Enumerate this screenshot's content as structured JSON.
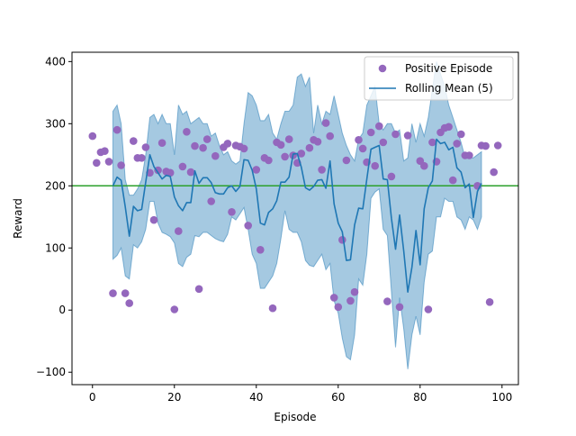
{
  "chart_data": {
    "type": "scatter",
    "title": "",
    "xlabel": "Episode",
    "ylabel": "Reward",
    "xlim": [
      -5,
      104
    ],
    "ylim": [
      -120,
      415
    ],
    "x_ticks": [
      0,
      20,
      40,
      60,
      80,
      100
    ],
    "y_ticks": [
      -100,
      0,
      100,
      200,
      300,
      400
    ],
    "grid": false,
    "legend_position": "top-right",
    "threshold": {
      "value": 200,
      "color": "#2ca02c"
    },
    "colors": {
      "points": "#9467bd",
      "rolling_mean": "#1f77b4",
      "band": "#1f77b4"
    },
    "series": [
      {
        "name": "Positive Episode",
        "kind": "scatter",
        "points": [
          [
            0,
            280
          ],
          [
            1,
            237
          ],
          [
            2,
            254
          ],
          [
            3,
            256
          ],
          [
            4,
            239
          ],
          [
            5,
            27
          ],
          [
            6,
            290
          ],
          [
            7,
            233
          ],
          [
            8,
            27
          ],
          [
            9,
            11
          ],
          [
            10,
            272
          ],
          [
            11,
            245
          ],
          [
            12,
            245
          ],
          [
            13,
            262
          ],
          [
            14,
            221
          ],
          [
            15,
            145
          ],
          [
            16,
            225
          ],
          [
            17,
            269
          ],
          [
            18,
            223
          ],
          [
            19,
            221
          ],
          [
            20,
            1
          ],
          [
            21,
            127
          ],
          [
            22,
            231
          ],
          [
            23,
            287
          ],
          [
            24,
            222
          ],
          [
            25,
            264
          ],
          [
            26,
            34
          ],
          [
            27,
            261
          ],
          [
            28,
            275
          ],
          [
            29,
            175
          ],
          [
            30,
            248
          ],
          [
            32,
            262
          ],
          [
            33,
            268
          ],
          [
            34,
            158
          ],
          [
            35,
            265
          ],
          [
            36,
            263
          ],
          [
            37,
            260
          ],
          [
            38,
            136
          ],
          [
            40,
            226
          ],
          [
            41,
            97
          ],
          [
            42,
            245
          ],
          [
            43,
            241
          ],
          [
            44,
            3
          ],
          [
            45,
            270
          ],
          [
            46,
            266
          ],
          [
            47,
            247
          ],
          [
            48,
            275
          ],
          [
            49,
            249
          ],
          [
            50,
            237
          ],
          [
            51,
            252
          ],
          [
            53,
            261
          ],
          [
            54,
            274
          ],
          [
            55,
            271
          ],
          [
            56,
            226
          ],
          [
            57,
            301
          ],
          [
            58,
            280
          ],
          [
            59,
            20
          ],
          [
            60,
            5
          ],
          [
            61,
            113
          ],
          [
            62,
            241
          ],
          [
            63,
            15
          ],
          [
            64,
            29
          ],
          [
            65,
            274
          ],
          [
            66,
            260
          ],
          [
            67,
            238
          ],
          [
            68,
            286
          ],
          [
            69,
            232
          ],
          [
            70,
            296
          ],
          [
            71,
            270
          ],
          [
            72,
            14
          ],
          [
            73,
            215
          ],
          [
            74,
            283
          ],
          [
            75,
            5
          ],
          [
            77,
            281
          ],
          [
            80,
            240
          ],
          [
            81,
            232
          ],
          [
            82,
            1
          ],
          [
            83,
            270
          ],
          [
            84,
            239
          ],
          [
            85,
            286
          ],
          [
            86,
            293
          ],
          [
            87,
            295
          ],
          [
            88,
            209
          ],
          [
            89,
            268
          ],
          [
            90,
            283
          ],
          [
            91,
            249
          ],
          [
            92,
            249
          ],
          [
            94,
            200
          ],
          [
            95,
            265
          ],
          [
            96,
            264
          ],
          [
            97,
            13
          ],
          [
            98,
            222
          ],
          [
            99,
            265
          ]
        ]
      },
      {
        "name": "Rolling Mean (5)",
        "kind": "line",
        "x_start": 5,
        "values": [
          200,
          214,
          209,
          166,
          119,
          167,
          160,
          162,
          206,
          250,
          231,
          221,
          211,
          217,
          215,
          182,
          168,
          160,
          173,
          173,
          224,
          204,
          213,
          213,
          205,
          189,
          187,
          187,
          197,
          200,
          191,
          199,
          242,
          241,
          225,
          195,
          140,
          137,
          157,
          163,
          176,
          206,
          206,
          214,
          251,
          252,
          230,
          197,
          193,
          199,
          209,
          210,
          196,
          240,
          171,
          140,
          126,
          80,
          81,
          137,
          164,
          163,
          211,
          259,
          262,
          265,
          211,
          210,
          148,
          98,
          153,
          95,
          29,
          69,
          128,
          73,
          163,
          197,
          208,
          275,
          268,
          270,
          258,
          262,
          229,
          222,
          197,
          203,
          149,
          191,
          204
        ]
      },
      {
        "name": "band_upper",
        "kind": "band",
        "x_start": 5,
        "values": [
          320,
          330,
          300,
          210,
          185,
          185,
          195,
          210,
          250,
          310,
          315,
          300,
          315,
          300,
          300,
          250,
          330,
          315,
          320,
          300,
          305,
          310,
          300,
          300,
          280,
          285,
          265,
          250,
          255,
          240,
          235,
          240,
          300,
          350,
          345,
          330,
          305,
          305,
          315,
          285,
          275,
          300,
          320,
          320,
          330,
          375,
          380,
          360,
          375,
          285,
          330,
          300,
          320,
          315,
          345,
          315,
          285,
          265,
          250,
          240,
          275,
          285,
          330,
          345,
          360,
          300,
          290,
          300,
          300,
          285,
          290,
          240,
          245,
          300,
          270,
          300,
          280,
          310,
          355,
          400,
          380,
          360,
          330,
          310,
          290,
          270,
          245,
          245,
          245,
          250,
          255
        ]
      },
      {
        "name": "band_lower",
        "kind": "band",
        "x_start": 5,
        "values": [
          82,
          88,
          100,
          55,
          50,
          105,
          100,
          110,
          130,
          175,
          175,
          140,
          125,
          122,
          118,
          108,
          75,
          70,
          85,
          90,
          120,
          118,
          125,
          125,
          120,
          115,
          112,
          110,
          122,
          150,
          145,
          155,
          165,
          130,
          90,
          75,
          35,
          35,
          45,
          55,
          75,
          115,
          160,
          130,
          125,
          125,
          110,
          80,
          72,
          70,
          80,
          90,
          65,
          75,
          15,
          -5,
          -45,
          -75,
          -80,
          -40,
          50,
          40,
          90,
          180,
          190,
          195,
          130,
          120,
          30,
          -60,
          20,
          -30,
          -95,
          -40,
          -10,
          -40,
          45,
          90,
          95,
          150,
          150,
          180,
          175,
          175,
          150,
          145,
          130,
          150,
          145,
          130,
          150
        ]
      }
    ]
  }
}
